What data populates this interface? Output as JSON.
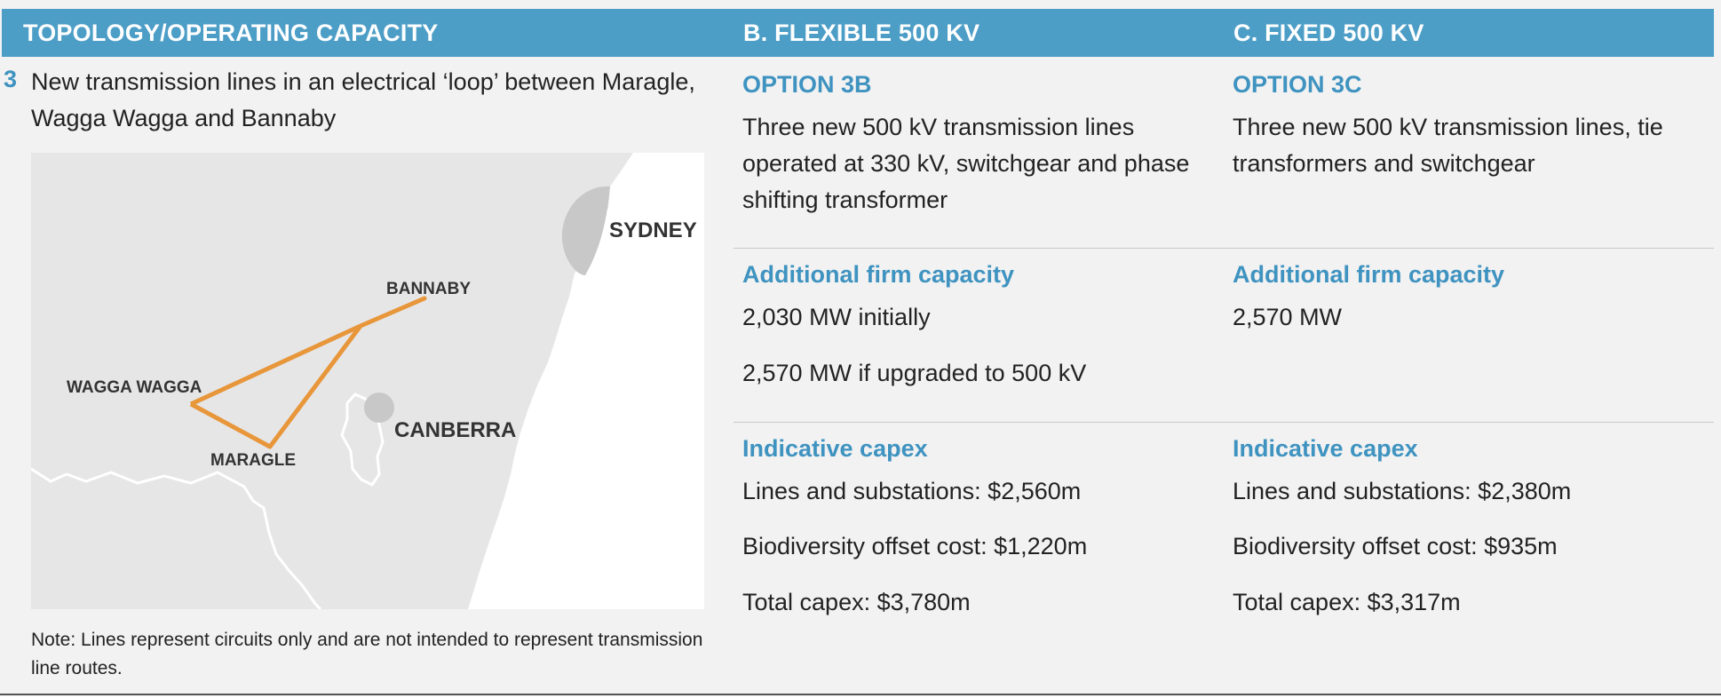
{
  "header": {
    "col_a": "TOPOLOGY/OPERATING CAPACITY",
    "col_b": "B. FLEXIBLE 500 KV",
    "col_c": "C. FIXED 500 KV"
  },
  "topology": {
    "number": "3",
    "description": "New transmission lines in an electrical ‘loop’ between Maragle, Wagga Wagga and Bannaby",
    "map": {
      "labels": {
        "sydney": "SYDNEY",
        "bannaby": "BANNABY",
        "wagga": "WAGGA WAGGA",
        "canberra": "CANBERRA",
        "maragle": "MARAGLE"
      },
      "colors": {
        "land": "#e6e6e7",
        "sea": "#ffffff",
        "city": "#c8c8c8",
        "lines": "#e8963a"
      }
    },
    "note": "Note: Lines represent circuits only and are not intended to represent transmission line routes."
  },
  "option_b": {
    "title": "OPTION 3B",
    "description": "Three new 500 kV transmission lines operated at 330 kV, switchgear and phase shifting transformer",
    "capacity_title": "Additional firm capacity",
    "capacity_lines": [
      "2,030 MW initially",
      "2,570 MW if upgraded to 500 kV"
    ],
    "capex_title": "Indicative capex",
    "capex_lines": [
      "Lines and substations: $2,560m",
      "Biodiversity offset cost: $1,220m",
      "Total capex: $3,780m"
    ]
  },
  "option_c": {
    "title": "OPTION 3C",
    "description": "Three new 500 kV transmission lines, tie transformers and switchgear",
    "capacity_title": "Additional firm capacity",
    "capacity_lines": [
      "2,570 MW"
    ],
    "capex_title": "Indicative capex",
    "capex_lines": [
      "Lines and substations: $2,380m",
      "Biodiversity offset cost: $935m",
      "Total capex: $3,317m"
    ]
  }
}
